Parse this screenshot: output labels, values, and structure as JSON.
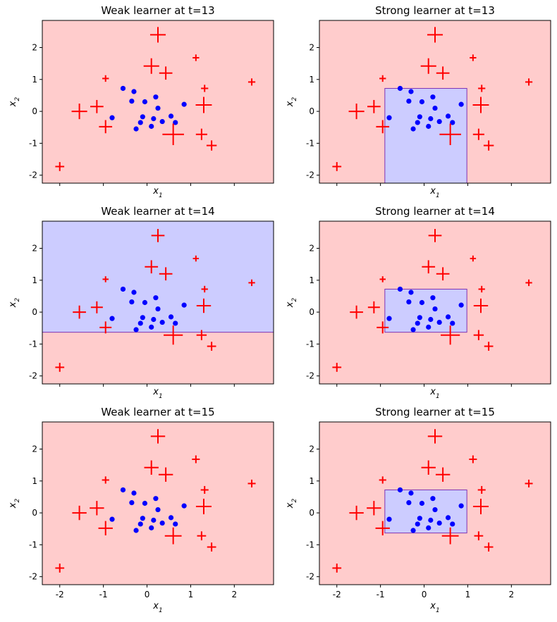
{
  "chart_data": [
    {
      "type": "scatter",
      "title": "Weak learner at t=13",
      "xlabel": "x1",
      "ylabel": "x2",
      "xlim": [
        -2.4,
        2.9
      ],
      "ylim": [
        -2.25,
        2.85
      ],
      "xticks": [
        "-2",
        "-1",
        "0",
        "1",
        "2"
      ],
      "yticks": [
        "-2",
        "-1",
        "0",
        "1",
        "2"
      ],
      "show_xticklabels": false,
      "prediction": {
        "default": "positive",
        "box": null
      }
    },
    {
      "type": "scatter",
      "title": "Strong learner at t=13",
      "xlabel": "x1",
      "ylabel": "x2",
      "xlim": [
        -2.4,
        2.9
      ],
      "ylim": [
        -2.25,
        2.85
      ],
      "xticks": [
        "-2",
        "-1",
        "0",
        "1",
        "2"
      ],
      "yticks": [
        "-2",
        "-1",
        "0",
        "1",
        "2"
      ],
      "show_xticklabels": false,
      "prediction": {
        "default": "positive",
        "box": {
          "x0": -0.9,
          "x1": 0.98,
          "y0": -2.25,
          "y1": 0.72,
          "label": "negative"
        }
      }
    },
    {
      "type": "scatter",
      "title": "Weak learner at t=14",
      "xlabel": "x1",
      "ylabel": "x2",
      "xlim": [
        -2.4,
        2.9
      ],
      "ylim": [
        -2.25,
        2.85
      ],
      "xticks": [
        "-2",
        "-1",
        "0",
        "1",
        "2"
      ],
      "yticks": [
        "-2",
        "-1",
        "0",
        "1",
        "2"
      ],
      "show_xticklabels": false,
      "prediction": {
        "default": "positive",
        "box": {
          "x0": -2.4,
          "x1": 2.9,
          "y0": -0.63,
          "y1": 2.85,
          "label": "negative"
        }
      }
    },
    {
      "type": "scatter",
      "title": "Strong learner at t=14",
      "xlabel": "x1",
      "ylabel": "x2",
      "xlim": [
        -2.4,
        2.9
      ],
      "ylim": [
        -2.25,
        2.85
      ],
      "xticks": [
        "-2",
        "-1",
        "0",
        "1",
        "2"
      ],
      "yticks": [
        "-2",
        "-1",
        "0",
        "1",
        "2"
      ],
      "show_xticklabels": false,
      "prediction": {
        "default": "positive",
        "box": {
          "x0": -0.9,
          "x1": 0.98,
          "y0": -0.63,
          "y1": 0.72,
          "label": "negative"
        }
      }
    },
    {
      "type": "scatter",
      "title": "Weak learner at t=15",
      "xlabel": "x1",
      "ylabel": "x2",
      "xlim": [
        -2.4,
        2.9
      ],
      "ylim": [
        -2.25,
        2.85
      ],
      "xticks": [
        "-2",
        "-1",
        "0",
        "1",
        "2"
      ],
      "yticks": [
        "-2",
        "-1",
        "0",
        "1",
        "2"
      ],
      "show_xticklabels": true,
      "prediction": {
        "default": "positive",
        "box": null
      }
    },
    {
      "type": "scatter",
      "title": "Strong learner at t=15",
      "xlabel": "x1",
      "ylabel": "x2",
      "xlim": [
        -2.4,
        2.9
      ],
      "ylim": [
        -2.25,
        2.85
      ],
      "xticks": [
        "-2",
        "-1",
        "0",
        "1",
        "2"
      ],
      "yticks": [
        "-2",
        "-1",
        "0",
        "1",
        "2"
      ],
      "show_xticklabels": true,
      "prediction": {
        "default": "positive",
        "box": {
          "x0": -0.9,
          "x1": 0.98,
          "y0": -0.63,
          "y1": 0.72,
          "label": "negative"
        }
      }
    }
  ],
  "points": {
    "negative": [
      [
        -0.55,
        0.72
      ],
      [
        -0.3,
        0.62
      ],
      [
        -0.35,
        0.32
      ],
      [
        -0.8,
        -0.2
      ],
      [
        0.2,
        0.45
      ],
      [
        -0.05,
        0.3
      ],
      [
        0.25,
        0.1
      ],
      [
        0.85,
        0.22
      ],
      [
        0.55,
        -0.15
      ],
      [
        -0.1,
        -0.17
      ],
      [
        0.35,
        -0.32
      ],
      [
        0.15,
        -0.23
      ],
      [
        -0.25,
        -0.55
      ],
      [
        -0.15,
        -0.35
      ],
      [
        0.1,
        -0.47
      ],
      [
        0.65,
        -0.35
      ]
    ],
    "positive": [
      [
        0.25,
        2.4
      ],
      [
        1.12,
        1.68
      ],
      [
        0.1,
        1.42
      ],
      [
        0.43,
        1.2
      ],
      [
        -0.95,
        1.03
      ],
      [
        1.32,
        0.72
      ],
      [
        2.4,
        0.92
      ],
      [
        -1.55,
        0.0
      ],
      [
        -1.15,
        0.15
      ],
      [
        1.3,
        0.2
      ],
      [
        -0.95,
        -0.48
      ],
      [
        0.6,
        -0.72
      ],
      [
        1.25,
        -0.72
      ],
      [
        1.48,
        -1.07
      ],
      [
        -2.0,
        -1.73
      ]
    ],
    "positive_weights": {
      "t13": [
        1.3,
        0.55,
        1.3,
        1.1,
        0.55,
        0.6,
        0.6,
        1.3,
        1.1,
        1.35,
        1.1,
        1.8,
        0.95,
        0.85,
        0.75
      ],
      "t14": [
        1.1,
        0.5,
        1.1,
        1.1,
        0.5,
        0.55,
        0.55,
        1.1,
        1.0,
        1.2,
        1.0,
        1.6,
        0.85,
        0.75,
        0.75
      ],
      "t15": [
        1.2,
        0.65,
        1.2,
        1.2,
        0.6,
        0.65,
        0.65,
        1.2,
        1.2,
        1.3,
        1.2,
        1.4,
        0.75,
        0.75,
        0.75
      ]
    },
    "weights_by_panel": [
      "t13",
      "t13",
      "t14",
      "t14",
      "t15",
      "t15"
    ]
  },
  "colors": {
    "positive_region": "#ffcccc",
    "negative_region": "#ccccff",
    "positive_marker": "#ff0000",
    "negative_marker": "#0000ff",
    "boundary": "#7f33b3"
  }
}
